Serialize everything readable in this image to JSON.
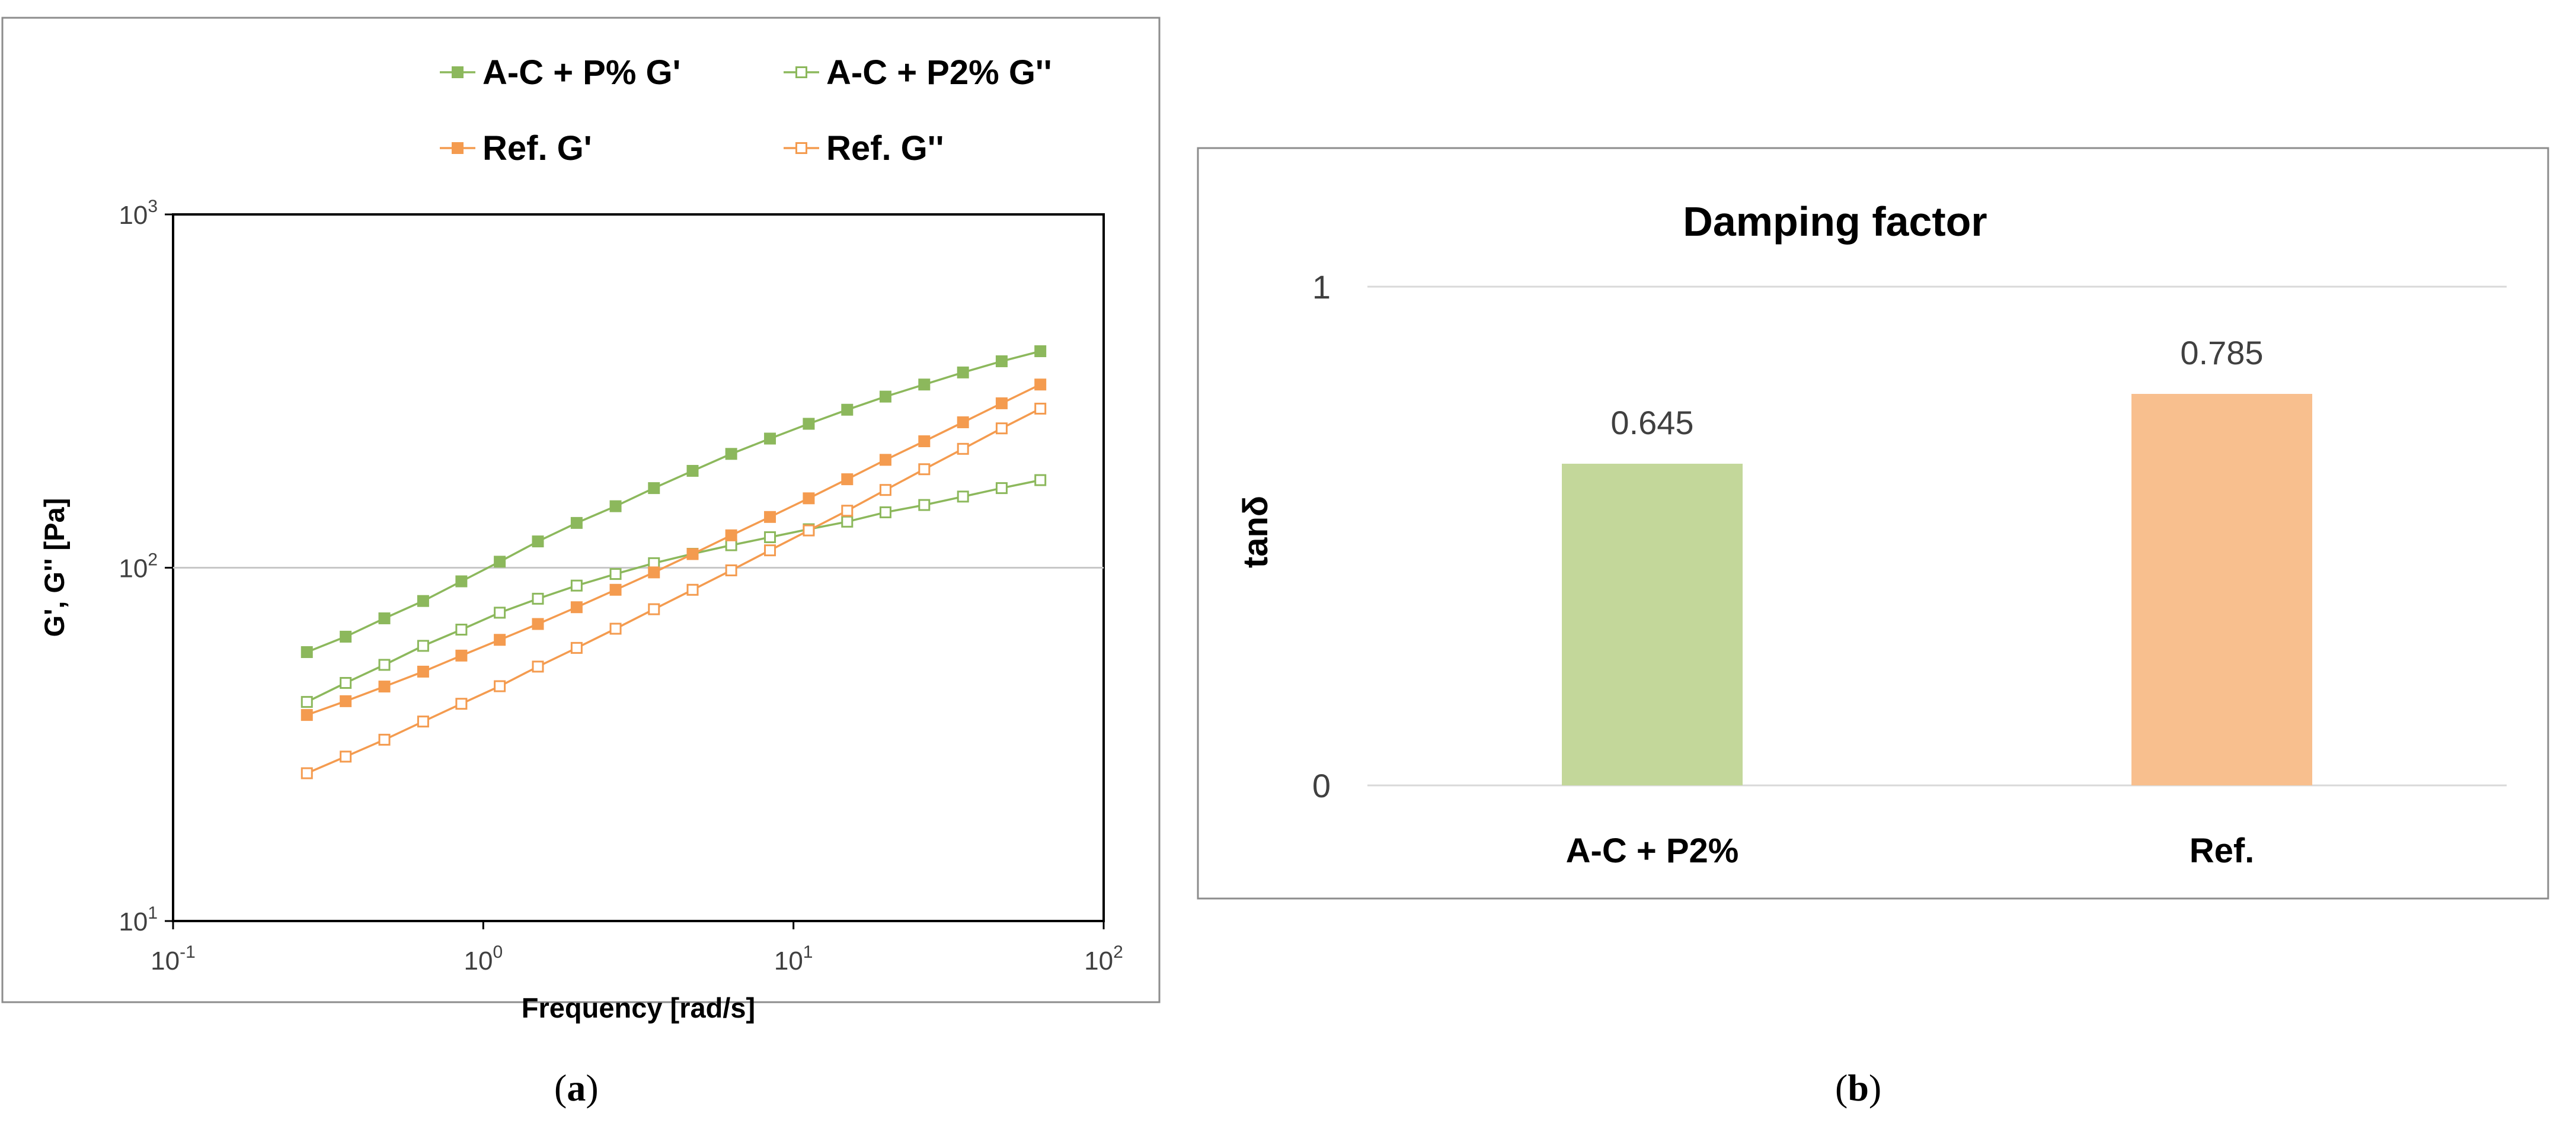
{
  "panels": {
    "a_caption_open": "(",
    "a_caption_letter": "a",
    "a_caption_close": ")",
    "b_caption_open": "(",
    "b_caption_letter": "b",
    "b_caption_close": ")"
  },
  "colors": {
    "green": "#8cb85c",
    "orange": "#f49b4f",
    "bar_green": "#c3d79a",
    "bar_orange": "#f8bf8e",
    "grid": "#c8c8c8",
    "frame": "#8c8c8c",
    "text": "#000000",
    "label_text": "#404040"
  },
  "chart_data": [
    {
      "type": "line",
      "xscale": "log",
      "yscale": "log",
      "xlabel": "Frequency [rad/s]",
      "ylabel": "G', G'' [Pa]",
      "xlim": [
        0.1,
        100
      ],
      "ylim": [
        10,
        1000
      ],
      "x_ticks": [
        {
          "base": "10",
          "exp": "-1",
          "value": 0.1
        },
        {
          "base": "10",
          "exp": "0",
          "value": 1
        },
        {
          "base": "10",
          "exp": "1",
          "value": 10
        },
        {
          "base": "10",
          "exp": "2",
          "value": 100
        }
      ],
      "y_ticks": [
        {
          "base": "10",
          "exp": "1",
          "value": 10
        },
        {
          "base": "10",
          "exp": "2",
          "value": 100
        },
        {
          "base": "10",
          "exp": "3",
          "value": 1000
        }
      ],
      "gridlines_y": [
        100
      ],
      "legend_position": "top",
      "x": [
        0.27,
        0.36,
        0.48,
        0.64,
        0.85,
        1.13,
        1.5,
        2.0,
        2.67,
        3.55,
        4.73,
        6.3,
        8.4,
        11.2,
        14.9,
        19.8,
        26.4,
        35.2,
        46.9,
        62.5
      ],
      "series": [
        {
          "name": "A-C + P% G'",
          "color_key": "green",
          "marker": "filled",
          "values": [
            57.7,
            63.8,
            71.9,
            80.5,
            91.5,
            104.0,
            118.7,
            133.9,
            149.3,
            168.0,
            188.0,
            210.0,
            232.0,
            255.5,
            280.0,
            305.0,
            330.0,
            357.0,
            384.0,
            410.0
          ]
        },
        {
          "name": "A-C + P2% G''",
          "color_key": "green",
          "marker": "open",
          "values": [
            41.7,
            47.2,
            53.1,
            60.1,
            66.8,
            74.6,
            81.7,
            89.0,
            96.0,
            103.0,
            109.5,
            115.8,
            122.0,
            128.5,
            135.0,
            143.5,
            150.5,
            159.0,
            168.0,
            177.0
          ]
        },
        {
          "name": "Ref. G'",
          "color_key": "orange",
          "marker": "filled",
          "values": [
            38.3,
            41.9,
            46.1,
            50.8,
            56.4,
            62.5,
            69.3,
            77.3,
            86.6,
            97.0,
            109.3,
            123.5,
            139.2,
            157.2,
            178.0,
            202.0,
            228.0,
            258.0,
            292.0,
            330.0
          ]
        },
        {
          "name": "Ref. G''",
          "color_key": "orange",
          "marker": "open",
          "values": [
            26.2,
            29.2,
            32.6,
            36.7,
            41.2,
            46.2,
            52.5,
            59.3,
            67.2,
            76.3,
            86.6,
            98.3,
            112.0,
            127.5,
            145.0,
            166.0,
            190.0,
            217.0,
            248.0,
            282.0
          ]
        }
      ]
    },
    {
      "type": "bar",
      "title": "Damping factor",
      "xlabel": "",
      "ylabel": "tanδ",
      "ylim": [
        0,
        1
      ],
      "y_ticks": [
        {
          "label": "0",
          "value": 0
        },
        {
          "label": "1",
          "value": 1
        }
      ],
      "categories": [
        "A-C + P2%",
        "Ref."
      ],
      "values": [
        0.645,
        0.785
      ],
      "value_labels": [
        "0.645",
        "0.785"
      ],
      "bar_color_keys": [
        "bar_green",
        "bar_orange"
      ]
    }
  ]
}
